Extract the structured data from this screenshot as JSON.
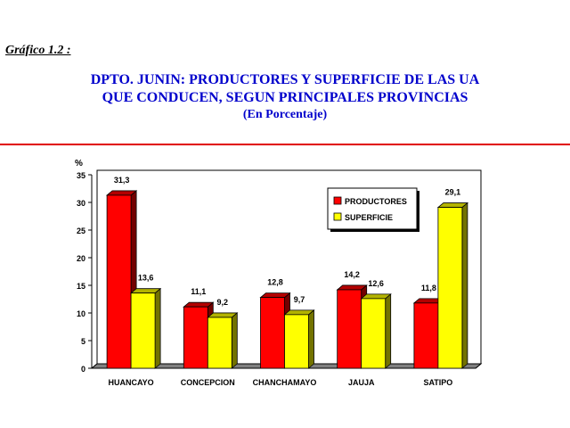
{
  "figure_label": "Gráfico 1.2 :",
  "title_lines": [
    "DPTO. JUNIN: PRODUCTORES Y SUPERFICIE DE LAS UA",
    "QUE CONDUCEN, SEGUN PRINCIPALES PROVINCIAS",
    "(En Porcentaje)"
  ],
  "colors": {
    "title": "#0000cc",
    "rule": "#e00000",
    "productores": "#ff0000",
    "superficie": "#ffff00",
    "floor": "#808080"
  },
  "chart_data": {
    "type": "bar",
    "ylabel": "%",
    "ylim": [
      0,
      35
    ],
    "yticks": [
      "0",
      "5",
      "10",
      "15",
      "20",
      "25",
      "30",
      "35"
    ],
    "categories": [
      "HUANCAYO",
      "CONCEPCION",
      "CHANCHAMAYO",
      "JAUJA",
      "SATIPO"
    ],
    "series": [
      {
        "name": "PRODUCTORES",
        "values": [
          31.3,
          11.1,
          12.8,
          14.2,
          11.8
        ],
        "labels": [
          "31,3",
          "11,1",
          "12,8",
          "14,2",
          "11,8"
        ]
      },
      {
        "name": "SUPERFICIE",
        "values": [
          13.6,
          9.2,
          9.7,
          12.6,
          29.1
        ],
        "labels": [
          "13,6",
          "9,2",
          "9,7",
          "12,6",
          "29,1"
        ]
      }
    ],
    "legend_position": "top-right",
    "grid": false,
    "style": "3d"
  }
}
